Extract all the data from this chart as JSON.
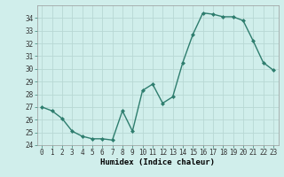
{
  "x": [
    0,
    1,
    2,
    3,
    4,
    5,
    6,
    7,
    8,
    9,
    10,
    11,
    12,
    13,
    14,
    15,
    16,
    17,
    18,
    19,
    20,
    21,
    22,
    23
  ],
  "y": [
    27,
    26.7,
    26.1,
    25.1,
    24.7,
    24.5,
    24.5,
    24.4,
    26.7,
    25.1,
    28.3,
    28.8,
    27.3,
    27.8,
    30.5,
    32.7,
    34.4,
    34.3,
    34.1,
    34.1,
    33.8,
    32.2,
    30.5,
    29.9
  ],
  "line_color": "#2e7d6e",
  "marker": "D",
  "marker_size": 2.0,
  "bg_color": "#d0eeeb",
  "grid_color": "#b8d8d4",
  "xlabel": "Humidex (Indice chaleur)",
  "xlabel_fontsize": 6.5,
  "ylim": [
    24,
    35
  ],
  "xlim": [
    -0.5,
    23.5
  ],
  "yticks": [
    24,
    25,
    26,
    27,
    28,
    29,
    30,
    31,
    32,
    33,
    34
  ],
  "xticks": [
    0,
    1,
    2,
    3,
    4,
    5,
    6,
    7,
    8,
    9,
    10,
    11,
    12,
    13,
    14,
    15,
    16,
    17,
    18,
    19,
    20,
    21,
    22,
    23
  ],
  "tick_fontsize": 5.5,
  "line_width": 1.0
}
